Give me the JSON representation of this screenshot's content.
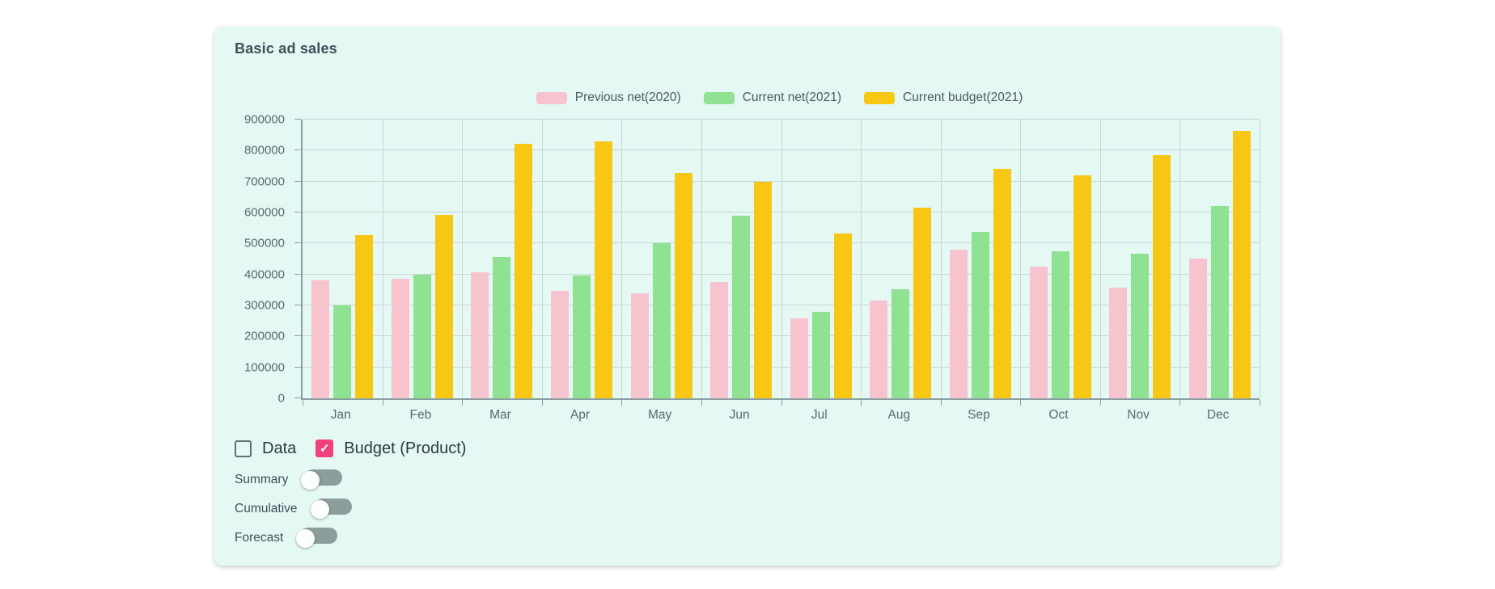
{
  "card": {
    "title": "Basic ad sales",
    "background": "#e4f8f4"
  },
  "chart_data": {
    "type": "bar",
    "title": "Basic ad sales",
    "categories": [
      "Jan",
      "Feb",
      "Mar",
      "Apr",
      "May",
      "Jun",
      "Jul",
      "Aug",
      "Sep",
      "Oct",
      "Nov",
      "Dec"
    ],
    "series": [
      {
        "name": "Previous net(2020)",
        "color": "#f7c3ce",
        "values": [
          381000,
          386000,
          406000,
          347000,
          340000,
          375000,
          259000,
          315000,
          479000,
          424000,
          357000,
          452000
        ]
      },
      {
        "name": "Current net(2021)",
        "color": "#8ee291",
        "values": [
          301000,
          398000,
          457000,
          397000,
          501000,
          589000,
          279000,
          352000,
          537000,
          476000,
          467000,
          621000
        ]
      },
      {
        "name": "Current budget(2021)",
        "color": "#f8c714",
        "values": [
          526000,
          593000,
          823000,
          829000,
          727000,
          700000,
          531000,
          616000,
          741000,
          720000,
          786000,
          864000
        ]
      }
    ],
    "ylim": [
      0,
      900000
    ],
    "ytick_step": 100000,
    "xlabel": "",
    "ylabel": "",
    "grid": true,
    "legend_position": "top-center"
  },
  "controls": {
    "checkboxes": [
      {
        "label": "Data",
        "checked": false
      },
      {
        "label": "Budget (Product)",
        "checked": true,
        "checked_color": "#f1407a",
        "check_glyph": "✓"
      }
    ],
    "toggles": [
      {
        "label": "Summary",
        "on": false
      },
      {
        "label": "Cumulative",
        "on": false
      },
      {
        "label": "Forecast",
        "on": false
      }
    ],
    "toggle_track_color": "#8d9d9b"
  }
}
